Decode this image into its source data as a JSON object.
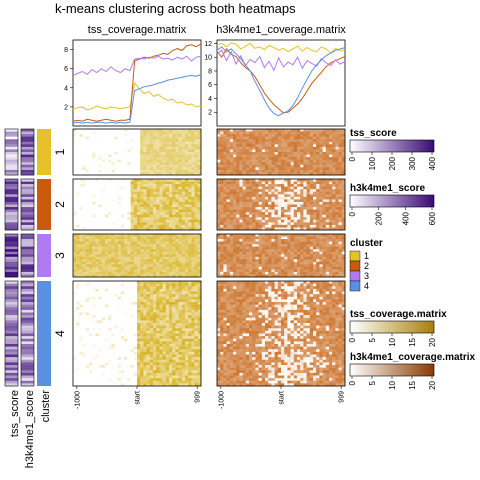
{
  "title": "k-means clustering across both heatmaps",
  "colors": {
    "cluster_1": "#E6C12A",
    "cluster_2": "#CC5A0E",
    "cluster_3": "#B07BF0",
    "cluster_4": "#5B8FE0",
    "tss_low": "#ffffff",
    "tss_high": "#D4AC0D",
    "h3k_low": "#ffffff",
    "h3k_high": "#C8691C",
    "score_low": "#ffffff",
    "score_high": "#3A0A78"
  },
  "row_annotations": {
    "labels": [
      "tss_score",
      "h3k4me1_score",
      "cluster"
    ]
  },
  "chart_data": [
    {
      "type": "line",
      "name": "tss_coverage.matrix",
      "title": "tss_coverage.matrix",
      "ylim": [
        0,
        9
      ],
      "yticks": [
        2,
        4,
        6,
        8
      ],
      "x_tick_labels": [
        "-1000",
        "start",
        "999"
      ],
      "series": [
        {
          "name": "1",
          "color": "#E6C12A",
          "values": [
            1.8,
            1.9,
            2.0,
            1.7,
            1.8,
            2.1,
            1.9,
            1.8,
            2.0,
            1.9,
            1.8,
            1.9,
            2.0,
            4.5,
            3.9,
            3.4,
            3.6,
            3.1,
            3.3,
            2.9,
            2.7,
            2.8,
            2.4,
            2.5,
            2.2,
            2.3,
            2.0,
            2.1
          ]
        },
        {
          "name": "2",
          "color": "#CC5A0E",
          "values": [
            0.5,
            0.6,
            0.5,
            0.7,
            0.6,
            0.5,
            0.6,
            0.7,
            0.6,
            0.5,
            0.6,
            0.6,
            0.7,
            6.8,
            7.0,
            7.2,
            7.1,
            7.3,
            7.4,
            7.6,
            7.5,
            7.9,
            8.1,
            7.9,
            8.4,
            8.5,
            8.3,
            8.6
          ]
        },
        {
          "name": "3",
          "color": "#B07BF0",
          "values": [
            5.3,
            5.5,
            5.7,
            5.4,
            5.9,
            5.6,
            6.0,
            5.7,
            6.2,
            5.8,
            5.6,
            6.0,
            5.8,
            7.0,
            7.1,
            7.0,
            7.2,
            7.1,
            7.3,
            7.0,
            7.1,
            6.9,
            7.2,
            7.0,
            7.3,
            6.8,
            7.2,
            7.3
          ]
        },
        {
          "name": "4",
          "color": "#5B8FE0",
          "values": [
            0.3,
            0.4,
            0.3,
            0.4,
            0.3,
            0.4,
            0.4,
            0.3,
            0.4,
            0.3,
            0.4,
            0.3,
            0.4,
            3.7,
            3.9,
            4.1,
            4.2,
            4.3,
            4.5,
            4.6,
            4.8,
            4.9,
            5.0,
            5.1,
            5.2,
            5.3,
            5.2,
            5.4
          ]
        }
      ]
    },
    {
      "type": "line",
      "name": "h3k4me1_coverage.matrix",
      "title": "h3k4me1_coverage.matrix",
      "ylim": [
        0,
        12.5
      ],
      "yticks": [
        2,
        4,
        6,
        8,
        10,
        12
      ],
      "x_tick_labels": [
        "-1000",
        "start",
        "999"
      ],
      "series": [
        {
          "name": "1",
          "color": "#E6C12A",
          "values": [
            11.8,
            12.0,
            11.5,
            12.1,
            11.9,
            11.2,
            11.6,
            12.0,
            11.3,
            11.5,
            11.1,
            11.7,
            11.4,
            11.0,
            11.3,
            10.8,
            11.2,
            11.6,
            10.9,
            11.4,
            11.0,
            10.8,
            11.5,
            11.2,
            10.6,
            11.3,
            10.9,
            11.1
          ]
        },
        {
          "name": "2",
          "color": "#CC5A0E",
          "values": [
            10.8,
            10.0,
            11.2,
            10.4,
            10.1,
            9.2,
            8.5,
            8.0,
            7.2,
            6.0,
            4.8,
            3.9,
            3.1,
            2.5,
            1.9,
            2.0,
            2.6,
            3.2,
            4.0,
            5.1,
            6.2,
            7.0,
            7.8,
            8.6,
            9.2,
            9.5,
            9.8,
            10.1
          ]
        },
        {
          "name": "3",
          "color": "#B07BF0",
          "values": [
            10.5,
            11.0,
            9.5,
            10.8,
            9.0,
            10.2,
            8.8,
            9.7,
            9.2,
            10.1,
            8.5,
            9.4,
            8.1,
            9.9,
            8.6,
            9.3,
            8.9,
            10.0,
            8.4,
            9.5,
            9.1,
            8.7,
            9.8,
            9.2,
            8.8,
            9.6,
            9.0,
            9.4
          ]
        },
        {
          "name": "4",
          "color": "#5B8FE0",
          "values": [
            11.0,
            11.5,
            10.8,
            11.2,
            10.5,
            9.8,
            8.9,
            8.0,
            6.5,
            5.2,
            3.8,
            2.6,
            1.8,
            1.5,
            1.9,
            2.2,
            3.0,
            4.1,
            5.5,
            6.8,
            8.0,
            8.9,
            9.6,
            10.2,
            10.6,
            11.0,
            11.2,
            11.4
          ]
        }
      ]
    },
    {
      "type": "heatmap",
      "name": "tss_coverage.matrix",
      "legend_title": "tss_coverage.matrix",
      "legend_ticks": [
        "0",
        "5",
        "10",
        "15",
        "20"
      ],
      "x_tick_labels": [
        "-1000",
        "start",
        "999"
      ],
      "clusters": [
        "1",
        "2",
        "3",
        "4"
      ]
    },
    {
      "type": "heatmap",
      "name": "h3k4me1_coverage.matrix",
      "legend_title": "h3k4me1_coverage.matrix",
      "legend_ticks": [
        "0",
        "5",
        "10",
        "15",
        "20"
      ],
      "x_tick_labels": [
        "-1000",
        "start",
        "999"
      ],
      "clusters": [
        "1",
        "2",
        "3",
        "4"
      ]
    }
  ],
  "legends": {
    "tss_score": {
      "title": "tss_score",
      "ticks": [
        "0",
        "100",
        "200",
        "300",
        "400"
      ]
    },
    "h3k4me1_score": {
      "title": "h3k4me1_score",
      "ticks": [
        "0",
        "200",
        "400",
        "600"
      ]
    },
    "cluster": {
      "title": "cluster",
      "items": [
        "1",
        "2",
        "3",
        "4"
      ]
    }
  }
}
